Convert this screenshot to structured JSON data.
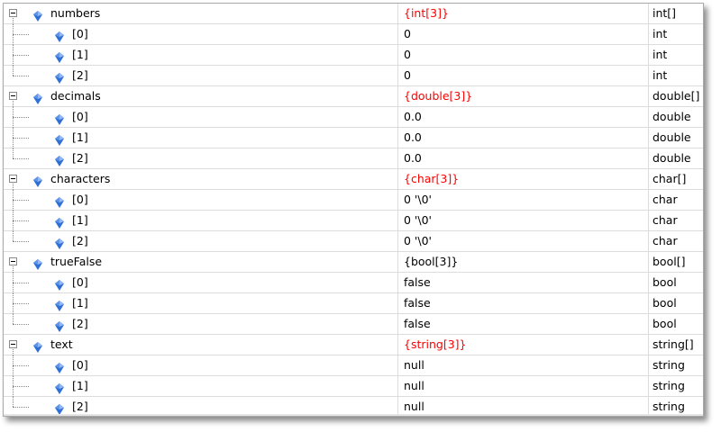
{
  "colors": {
    "changed_value": "#ff0000",
    "grid_line": "#dcdcdc",
    "icon_blue": "#2f6fd6"
  },
  "groups": [
    {
      "name": "numbers",
      "value": "{int[3]}",
      "type": "int[]",
      "value_changed": true,
      "children": [
        {
          "name": "[0]",
          "value": "0",
          "type": "int"
        },
        {
          "name": "[1]",
          "value": "0",
          "type": "int"
        },
        {
          "name": "[2]",
          "value": "0",
          "type": "int"
        }
      ]
    },
    {
      "name": "decimals",
      "value": "{double[3]}",
      "type": "double[]",
      "value_changed": true,
      "children": [
        {
          "name": "[0]",
          "value": "0.0",
          "type": "double"
        },
        {
          "name": "[1]",
          "value": "0.0",
          "type": "double"
        },
        {
          "name": "[2]",
          "value": "0.0",
          "type": "double"
        }
      ]
    },
    {
      "name": "characters",
      "value": "{char[3]}",
      "type": "char[]",
      "value_changed": true,
      "children": [
        {
          "name": "[0]",
          "value": "0 '\\0'",
          "type": "char"
        },
        {
          "name": "[1]",
          "value": "0 '\\0'",
          "type": "char"
        },
        {
          "name": "[2]",
          "value": "0 '\\0'",
          "type": "char"
        }
      ]
    },
    {
      "name": "trueFalse",
      "value": "{bool[3]}",
      "type": "bool[]",
      "value_changed": false,
      "children": [
        {
          "name": "[0]",
          "value": "false",
          "type": "bool"
        },
        {
          "name": "[1]",
          "value": "false",
          "type": "bool"
        },
        {
          "name": "[2]",
          "value": "false",
          "type": "bool"
        }
      ]
    },
    {
      "name": "text",
      "value": "{string[3]}",
      "type": "string[]",
      "value_changed": true,
      "children": [
        {
          "name": "[0]",
          "value": "null",
          "type": "string"
        },
        {
          "name": "[1]",
          "value": "null",
          "type": "string"
        },
        {
          "name": "[2]",
          "value": "null",
          "type": "string"
        }
      ]
    }
  ]
}
